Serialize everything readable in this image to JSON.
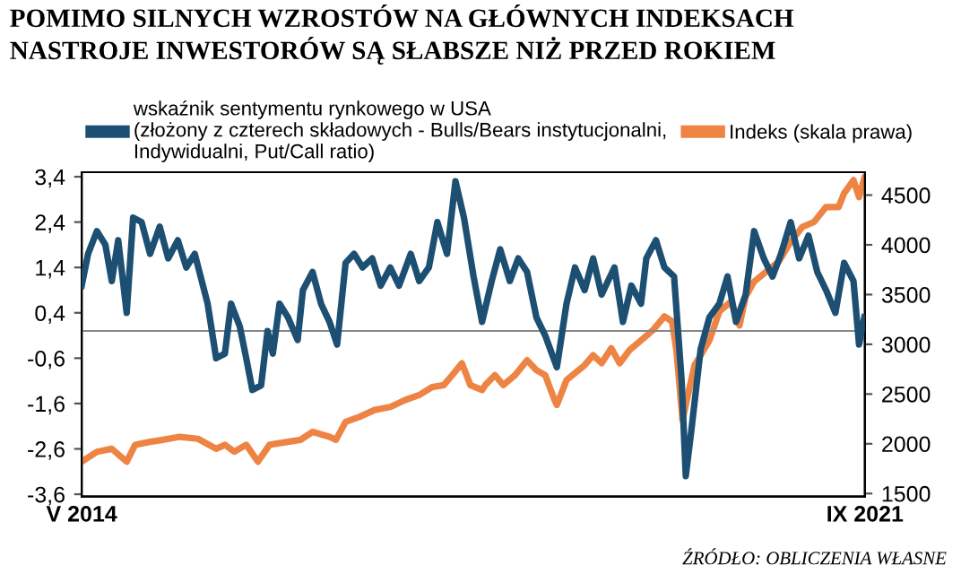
{
  "chart_data": {
    "type": "line",
    "title": "POMIMO SILNYCH WZROSTÓW NA GŁÓWNYCH INDEKSACH\nNASTROJE INWESTORÓW SĄ SŁABSZE NIŻ PRZED ROKIEM",
    "annotations": [
      "ŹRÓDŁO: OBLICZENIA WŁASNE"
    ],
    "series": [
      {
        "name": "wskaźnik sentymentu rynkowego w USA\n(złożony z czterech składowych - Bulls/Bears instytucjonalni,\nIndywidualni, Put/Call ratio)",
        "color": "#1d4f73",
        "x": [
          "2014-05-01",
          "2014-05-23",
          "2014-06-22",
          "2014-07-21",
          "2014-08-12",
          "2014-09-03",
          "2014-10-02",
          "2014-10-24",
          "2014-11-22",
          "2014-12-21",
          "2015-01-23",
          "2015-02-21",
          "2015-03-26",
          "2015-04-24",
          "2015-05-23",
          "2015-07-06",
          "2015-08-04",
          "2015-09-03",
          "2015-09-24",
          "2015-10-24",
          "2015-11-15",
          "2015-12-06",
          "2016-01-05",
          "2016-01-27",
          "2016-02-14",
          "2016-03-08",
          "2016-04-06",
          "2016-05-09",
          "2016-05-27",
          "2016-06-29",
          "2016-07-28",
          "2016-08-26",
          "2016-09-21",
          "2016-10-20",
          "2016-11-18",
          "2016-12-17",
          "2017-01-19",
          "2017-02-17",
          "2017-03-22",
          "2017-04-21",
          "2017-05-31",
          "2017-06-29",
          "2017-08-01",
          "2017-08-30",
          "2017-10-02",
          "2017-10-31",
          "2017-11-29",
          "2018-01-01",
          "2018-01-30",
          "2018-03-04",
          "2018-04-02",
          "2018-05-05",
          "2018-06-03",
          "2018-07-03",
          "2018-08-04",
          "2018-09-03",
          "2018-10-13",
          "2018-11-15",
          "2018-12-14",
          "2019-01-16",
          "2019-02-14",
          "2019-03-15",
          "2019-04-28",
          "2019-05-27",
          "2019-06-25",
          "2019-07-28",
          "2019-08-15",
          "2019-09-17",
          "2019-10-16",
          "2019-11-18",
          "2019-12-14",
          "2019-12-28",
          "2020-01-16",
          "2020-02-17",
          "2020-03-18",
          "2020-04-21",
          "2020-05-19",
          "2020-06-17",
          "2020-07-20",
          "2020-08-18",
          "2020-09-20",
          "2020-10-20",
          "2020-11-18",
          "2020-12-21",
          "2021-01-19",
          "2021-02-20",
          "2021-03-22",
          "2021-04-21",
          "2021-05-23",
          "2021-06-22",
          "2021-07-24",
          "2021-08-12",
          "2021-08-30"
        ],
        "values": [
          1.0,
          1.7,
          2.2,
          1.9,
          1.1,
          2.0,
          0.4,
          2.5,
          2.4,
          1.7,
          2.3,
          1.6,
          2.0,
          1.4,
          1.7,
          0.6,
          -0.6,
          -0.5,
          0.6,
          0.1,
          -0.6,
          -1.3,
          -1.2,
          0.0,
          -0.5,
          0.6,
          0.3,
          -0.2,
          0.9,
          1.3,
          0.6,
          0.2,
          -0.3,
          1.5,
          1.7,
          1.4,
          1.6,
          1.0,
          1.4,
          1.0,
          1.7,
          1.1,
          1.4,
          2.4,
          1.7,
          3.3,
          2.5,
          1.2,
          0.2,
          1.1,
          1.8,
          1.1,
          1.6,
          1.3,
          0.3,
          -0.1,
          -0.8,
          0.6,
          1.4,
          0.9,
          1.6,
          0.8,
          1.4,
          0.2,
          1.0,
          0.6,
          1.6,
          2.0,
          1.4,
          1.2,
          -1.1,
          -3.2,
          -2.2,
          -0.4,
          0.3,
          0.6,
          1.2,
          0.2,
          0.8,
          2.2,
          1.6,
          1.2,
          1.7,
          2.4,
          1.6,
          2.1,
          1.3,
          0.9,
          0.4,
          1.5,
          1.1,
          -0.3,
          0.3
        ]
      },
      {
        "name": "Indeks (skala prawa)",
        "color": "#ee8444",
        "axis": "y2",
        "x": [
          "2014-05-01",
          "2014-06-22",
          "2014-08-12",
          "2014-10-02",
          "2014-10-31",
          "2014-12-21",
          "2015-02-03",
          "2015-04-02",
          "2015-06-03",
          "2015-08-04",
          "2015-09-03",
          "2015-10-05",
          "2015-11-15",
          "2015-12-25",
          "2016-02-03",
          "2016-04-06",
          "2016-05-19",
          "2016-06-29",
          "2016-08-26",
          "2016-09-17",
          "2016-10-20",
          "2016-12-06",
          "2017-01-27",
          "2017-03-22",
          "2017-05-12",
          "2017-06-29",
          "2017-08-12",
          "2017-09-21",
          "2017-10-20",
          "2017-11-22",
          "2017-12-21",
          "2018-01-30",
          "2018-02-10",
          "2018-03-15",
          "2018-04-13",
          "2018-05-23",
          "2018-07-03",
          "2018-08-04",
          "2018-09-03",
          "2018-10-05",
          "2018-10-13",
          "2018-11-15",
          "2018-12-14",
          "2019-01-16",
          "2019-02-14",
          "2019-03-15",
          "2019-04-17",
          "2019-05-16",
          "2019-06-18",
          "2019-07-28",
          "2019-09-06",
          "2019-10-16",
          "2019-11-11",
          "2019-11-26",
          "2019-12-17",
          "2020-01-08",
          "2020-01-27",
          "2020-02-17",
          "2020-03-18",
          "2020-04-21",
          "2020-05-31",
          "2020-06-29",
          "2020-07-20",
          "2020-08-18",
          "2020-09-28",
          "2020-11-10",
          "2020-12-21",
          "2021-01-30",
          "2021-03-11",
          "2021-04-21",
          "2021-06-03",
          "2021-06-22",
          "2021-07-24",
          "2021-08-12",
          "2021-08-30"
        ],
        "values": [
          1820,
          1920,
          1950,
          1820,
          1990,
          2020,
          2040,
          2070,
          2050,
          1950,
          1990,
          1920,
          1990,
          1820,
          1990,
          2020,
          2040,
          2120,
          2070,
          2040,
          2220,
          2270,
          2340,
          2370,
          2440,
          2490,
          2570,
          2590,
          2690,
          2810,
          2590,
          2540,
          2590,
          2690,
          2590,
          2690,
          2840,
          2740,
          2690,
          2440,
          2390,
          2640,
          2710,
          2790,
          2890,
          2810,
          2960,
          2810,
          2940,
          3040,
          3140,
          3280,
          3230,
          2940,
          2240,
          2540,
          2790,
          2890,
          3040,
          3330,
          3430,
          3190,
          3480,
          3630,
          3730,
          3830,
          4030,
          4180,
          4230,
          4380,
          4380,
          4520,
          4650,
          4480,
          4670
        ]
      }
    ],
    "xlim": [
      "2014-05-01",
      "2021-09-01"
    ],
    "xticks": [
      {
        "value": "2014-05-01",
        "label": "V 2014"
      },
      {
        "value": "2021-09-01",
        "label": "IX 2021"
      }
    ],
    "ylim": [
      -3.65,
      3.5
    ],
    "yticks": [
      {
        "value": 3.4,
        "label": "3,4"
      },
      {
        "value": 2.4,
        "label": "2,4"
      },
      {
        "value": 1.4,
        "label": "1,4"
      },
      {
        "value": 0.4,
        "label": "0,4"
      },
      {
        "value": -0.6,
        "label": "-0,6"
      },
      {
        "value": -1.6,
        "label": "-1,6"
      },
      {
        "value": -2.6,
        "label": "-2,6"
      },
      {
        "value": -3.6,
        "label": "-3,6"
      }
    ],
    "y2lim": [
      1470,
      4730
    ],
    "y2ticks": [
      1500,
      2000,
      2500,
      3000,
      3500,
      4000,
      4500
    ],
    "ref_lines": [
      {
        "axis": "y",
        "value": 0,
        "color": "#888888"
      }
    ],
    "legend": "top",
    "grid": false
  }
}
